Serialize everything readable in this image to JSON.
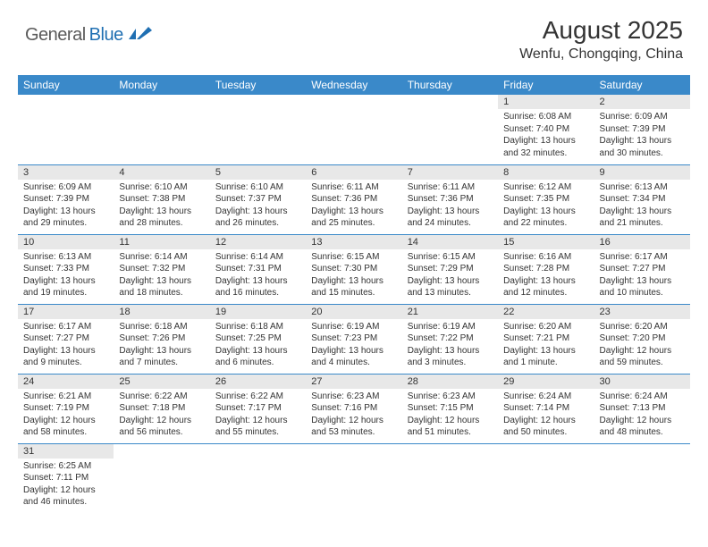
{
  "logo": {
    "textA": "General",
    "textB": "Blue"
  },
  "title": "August 2025",
  "location": "Wenfu, Chongqing, China",
  "colors": {
    "headerBlue": "#3a89c9",
    "rowGrey": "#e8e8e8",
    "logoBlue": "#1f6fb2",
    "text": "#333333"
  },
  "weekdays": [
    "Sunday",
    "Monday",
    "Tuesday",
    "Wednesday",
    "Thursday",
    "Friday",
    "Saturday"
  ],
  "weeks": [
    [
      null,
      null,
      null,
      null,
      null,
      {
        "n": "1",
        "sunrise": "Sunrise: 6:08 AM",
        "sunset": "Sunset: 7:40 PM",
        "daylight": "Daylight: 13 hours and 32 minutes."
      },
      {
        "n": "2",
        "sunrise": "Sunrise: 6:09 AM",
        "sunset": "Sunset: 7:39 PM",
        "daylight": "Daylight: 13 hours and 30 minutes."
      }
    ],
    [
      {
        "n": "3",
        "sunrise": "Sunrise: 6:09 AM",
        "sunset": "Sunset: 7:39 PM",
        "daylight": "Daylight: 13 hours and 29 minutes."
      },
      {
        "n": "4",
        "sunrise": "Sunrise: 6:10 AM",
        "sunset": "Sunset: 7:38 PM",
        "daylight": "Daylight: 13 hours and 28 minutes."
      },
      {
        "n": "5",
        "sunrise": "Sunrise: 6:10 AM",
        "sunset": "Sunset: 7:37 PM",
        "daylight": "Daylight: 13 hours and 26 minutes."
      },
      {
        "n": "6",
        "sunrise": "Sunrise: 6:11 AM",
        "sunset": "Sunset: 7:36 PM",
        "daylight": "Daylight: 13 hours and 25 minutes."
      },
      {
        "n": "7",
        "sunrise": "Sunrise: 6:11 AM",
        "sunset": "Sunset: 7:36 PM",
        "daylight": "Daylight: 13 hours and 24 minutes."
      },
      {
        "n": "8",
        "sunrise": "Sunrise: 6:12 AM",
        "sunset": "Sunset: 7:35 PM",
        "daylight": "Daylight: 13 hours and 22 minutes."
      },
      {
        "n": "9",
        "sunrise": "Sunrise: 6:13 AM",
        "sunset": "Sunset: 7:34 PM",
        "daylight": "Daylight: 13 hours and 21 minutes."
      }
    ],
    [
      {
        "n": "10",
        "sunrise": "Sunrise: 6:13 AM",
        "sunset": "Sunset: 7:33 PM",
        "daylight": "Daylight: 13 hours and 19 minutes."
      },
      {
        "n": "11",
        "sunrise": "Sunrise: 6:14 AM",
        "sunset": "Sunset: 7:32 PM",
        "daylight": "Daylight: 13 hours and 18 minutes."
      },
      {
        "n": "12",
        "sunrise": "Sunrise: 6:14 AM",
        "sunset": "Sunset: 7:31 PM",
        "daylight": "Daylight: 13 hours and 16 minutes."
      },
      {
        "n": "13",
        "sunrise": "Sunrise: 6:15 AM",
        "sunset": "Sunset: 7:30 PM",
        "daylight": "Daylight: 13 hours and 15 minutes."
      },
      {
        "n": "14",
        "sunrise": "Sunrise: 6:15 AM",
        "sunset": "Sunset: 7:29 PM",
        "daylight": "Daylight: 13 hours and 13 minutes."
      },
      {
        "n": "15",
        "sunrise": "Sunrise: 6:16 AM",
        "sunset": "Sunset: 7:28 PM",
        "daylight": "Daylight: 13 hours and 12 minutes."
      },
      {
        "n": "16",
        "sunrise": "Sunrise: 6:17 AM",
        "sunset": "Sunset: 7:27 PM",
        "daylight": "Daylight: 13 hours and 10 minutes."
      }
    ],
    [
      {
        "n": "17",
        "sunrise": "Sunrise: 6:17 AM",
        "sunset": "Sunset: 7:27 PM",
        "daylight": "Daylight: 13 hours and 9 minutes."
      },
      {
        "n": "18",
        "sunrise": "Sunrise: 6:18 AM",
        "sunset": "Sunset: 7:26 PM",
        "daylight": "Daylight: 13 hours and 7 minutes."
      },
      {
        "n": "19",
        "sunrise": "Sunrise: 6:18 AM",
        "sunset": "Sunset: 7:25 PM",
        "daylight": "Daylight: 13 hours and 6 minutes."
      },
      {
        "n": "20",
        "sunrise": "Sunrise: 6:19 AM",
        "sunset": "Sunset: 7:23 PM",
        "daylight": "Daylight: 13 hours and 4 minutes."
      },
      {
        "n": "21",
        "sunrise": "Sunrise: 6:19 AM",
        "sunset": "Sunset: 7:22 PM",
        "daylight": "Daylight: 13 hours and 3 minutes."
      },
      {
        "n": "22",
        "sunrise": "Sunrise: 6:20 AM",
        "sunset": "Sunset: 7:21 PM",
        "daylight": "Daylight: 13 hours and 1 minute."
      },
      {
        "n": "23",
        "sunrise": "Sunrise: 6:20 AM",
        "sunset": "Sunset: 7:20 PM",
        "daylight": "Daylight: 12 hours and 59 minutes."
      }
    ],
    [
      {
        "n": "24",
        "sunrise": "Sunrise: 6:21 AM",
        "sunset": "Sunset: 7:19 PM",
        "daylight": "Daylight: 12 hours and 58 minutes."
      },
      {
        "n": "25",
        "sunrise": "Sunrise: 6:22 AM",
        "sunset": "Sunset: 7:18 PM",
        "daylight": "Daylight: 12 hours and 56 minutes."
      },
      {
        "n": "26",
        "sunrise": "Sunrise: 6:22 AM",
        "sunset": "Sunset: 7:17 PM",
        "daylight": "Daylight: 12 hours and 55 minutes."
      },
      {
        "n": "27",
        "sunrise": "Sunrise: 6:23 AM",
        "sunset": "Sunset: 7:16 PM",
        "daylight": "Daylight: 12 hours and 53 minutes."
      },
      {
        "n": "28",
        "sunrise": "Sunrise: 6:23 AM",
        "sunset": "Sunset: 7:15 PM",
        "daylight": "Daylight: 12 hours and 51 minutes."
      },
      {
        "n": "29",
        "sunrise": "Sunrise: 6:24 AM",
        "sunset": "Sunset: 7:14 PM",
        "daylight": "Daylight: 12 hours and 50 minutes."
      },
      {
        "n": "30",
        "sunrise": "Sunrise: 6:24 AM",
        "sunset": "Sunset: 7:13 PM",
        "daylight": "Daylight: 12 hours and 48 minutes."
      }
    ],
    [
      {
        "n": "31",
        "sunrise": "Sunrise: 6:25 AM",
        "sunset": "Sunset: 7:11 PM",
        "daylight": "Daylight: 12 hours and 46 minutes."
      },
      null,
      null,
      null,
      null,
      null,
      null
    ]
  ]
}
